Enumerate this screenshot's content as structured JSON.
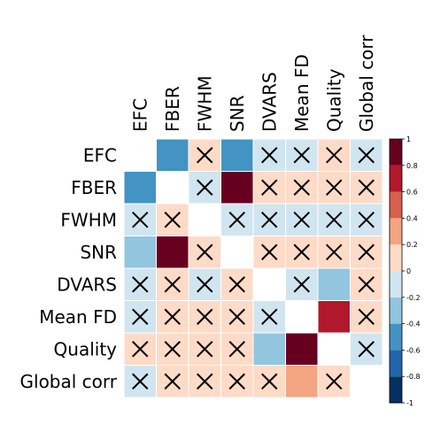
{
  "chart_data": {
    "type": "heatmap",
    "title": "",
    "variables": [
      "EFC",
      "FBER",
      "FWHM",
      "SNR",
      "DVARS",
      "Mean FD",
      "Quality",
      "Global corr"
    ],
    "matrix": [
      [
        null,
        -0.5,
        0.1,
        -0.5,
        -0.1,
        -0.1,
        0.1,
        -0.1
      ],
      [
        -0.5,
        null,
        -0.1,
        0.9,
        0.1,
        0.1,
        0.1,
        0.1
      ],
      [
        -0.1,
        0.1,
        null,
        -0.1,
        -0.1,
        -0.1,
        -0.1,
        -0.1
      ],
      [
        -0.35,
        0.9,
        0.1,
        null,
        0.1,
        0.1,
        0.1,
        0.1
      ],
      [
        -0.1,
        0.1,
        -0.1,
        0.1,
        null,
        -0.1,
        -0.25,
        0.1
      ],
      [
        -0.1,
        0.1,
        0.1,
        0.1,
        -0.1,
        null,
        0.7,
        0.1
      ],
      [
        0.1,
        0.1,
        0.1,
        0.1,
        -0.25,
        0.9,
        null,
        -0.1
      ],
      [
        -0.1,
        0.1,
        0.1,
        0.1,
        0.1,
        0.3,
        0.1,
        null
      ]
    ],
    "crossed": [
      [
        false,
        false,
        true,
        false,
        true,
        true,
        true,
        true
      ],
      [
        false,
        false,
        true,
        false,
        true,
        true,
        true,
        true
      ],
      [
        true,
        true,
        false,
        true,
        true,
        true,
        true,
        true
      ],
      [
        false,
        false,
        true,
        false,
        true,
        true,
        true,
        true
      ],
      [
        true,
        true,
        true,
        true,
        false,
        true,
        false,
        true
      ],
      [
        true,
        true,
        true,
        true,
        true,
        false,
        false,
        true
      ],
      [
        true,
        true,
        true,
        true,
        false,
        false,
        false,
        true
      ],
      [
        true,
        true,
        true,
        true,
        true,
        false,
        true,
        false
      ]
    ],
    "colorbar": {
      "range": [
        -1,
        1
      ],
      "ticks": [
        "1",
        "0.8",
        "0.6",
        "0.4",
        "0.2",
        "0",
        "-0.2",
        "-0.4",
        "-0.6",
        "-0.8",
        "-1"
      ],
      "colors": [
        "#053061",
        "#2166ac",
        "#4393c3",
        "#92c5de",
        "#d1e5f0",
        "#fddbc7",
        "#f4a582",
        "#d6604d",
        "#b2182b",
        "#67001f"
      ]
    },
    "legend_placement": "right"
  }
}
